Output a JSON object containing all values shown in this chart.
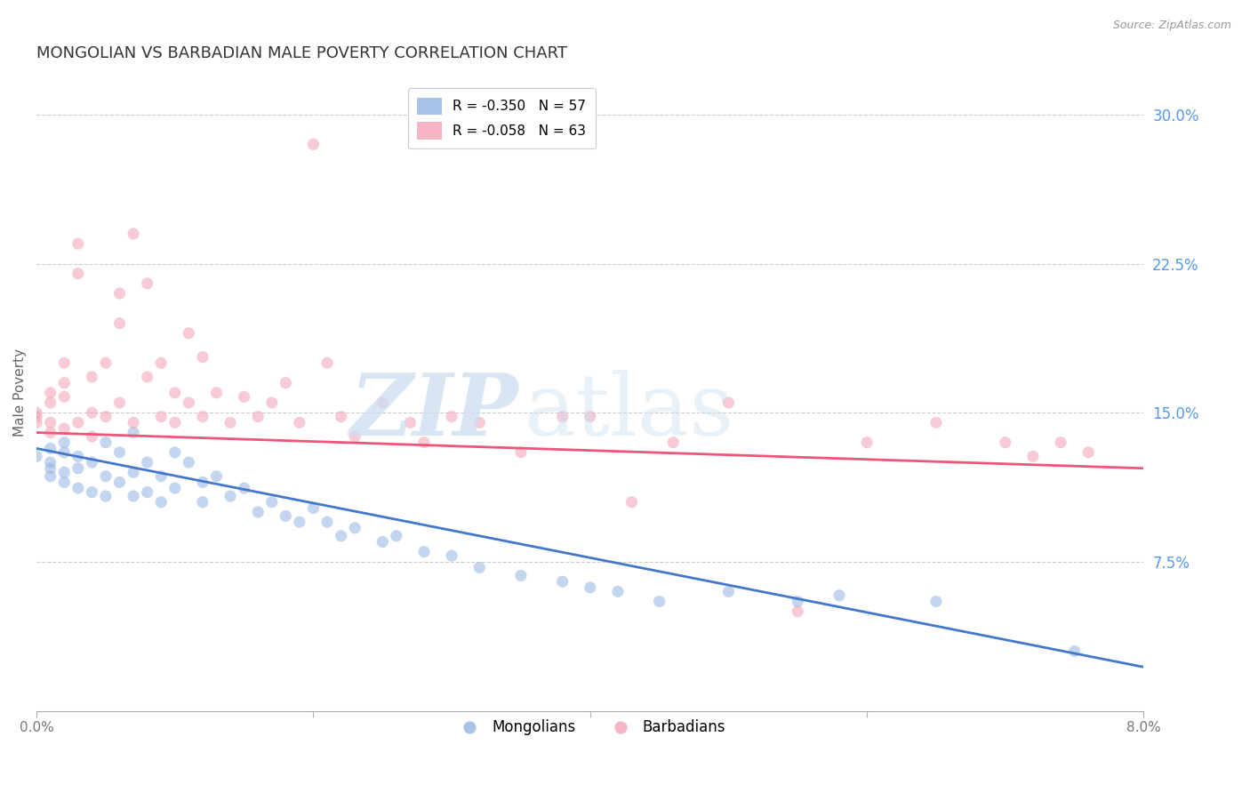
{
  "title": "MONGOLIAN VS BARBADIAN MALE POVERTY CORRELATION CHART",
  "source": "Source: ZipAtlas.com",
  "ylabel": "Male Poverty",
  "ytick_labels": [
    "30.0%",
    "22.5%",
    "15.0%",
    "7.5%"
  ],
  "ytick_values": [
    0.3,
    0.225,
    0.15,
    0.075
  ],
  "xlim": [
    0.0,
    0.08
  ],
  "ylim": [
    0.0,
    0.32
  ],
  "legend_entries": [
    {
      "label": "Mongolians",
      "color": "#92b4e3",
      "R": "-0.350",
      "N": "57"
    },
    {
      "label": "Barbadians",
      "color": "#f4a0b5",
      "R": "-0.058",
      "N": "63"
    }
  ],
  "mongolians_x": [
    0.0,
    0.001,
    0.001,
    0.001,
    0.001,
    0.002,
    0.002,
    0.002,
    0.002,
    0.003,
    0.003,
    0.003,
    0.004,
    0.004,
    0.005,
    0.005,
    0.005,
    0.006,
    0.006,
    0.007,
    0.007,
    0.007,
    0.008,
    0.008,
    0.009,
    0.009,
    0.01,
    0.01,
    0.011,
    0.012,
    0.012,
    0.013,
    0.014,
    0.015,
    0.016,
    0.017,
    0.018,
    0.019,
    0.02,
    0.021,
    0.022,
    0.023,
    0.025,
    0.026,
    0.028,
    0.03,
    0.032,
    0.035,
    0.038,
    0.04,
    0.042,
    0.045,
    0.05,
    0.055,
    0.058,
    0.065,
    0.075
  ],
  "mongolians_y": [
    0.128,
    0.132,
    0.118,
    0.122,
    0.125,
    0.13,
    0.115,
    0.12,
    0.135,
    0.128,
    0.122,
    0.112,
    0.125,
    0.11,
    0.135,
    0.118,
    0.108,
    0.13,
    0.115,
    0.14,
    0.12,
    0.108,
    0.125,
    0.11,
    0.118,
    0.105,
    0.13,
    0.112,
    0.125,
    0.115,
    0.105,
    0.118,
    0.108,
    0.112,
    0.1,
    0.105,
    0.098,
    0.095,
    0.102,
    0.095,
    0.088,
    0.092,
    0.085,
    0.088,
    0.08,
    0.078,
    0.072,
    0.068,
    0.065,
    0.062,
    0.06,
    0.055,
    0.06,
    0.055,
    0.058,
    0.055,
    0.03
  ],
  "barbadians_x": [
    0.0,
    0.0,
    0.0,
    0.001,
    0.001,
    0.001,
    0.001,
    0.002,
    0.002,
    0.002,
    0.002,
    0.003,
    0.003,
    0.003,
    0.004,
    0.004,
    0.004,
    0.005,
    0.005,
    0.006,
    0.006,
    0.006,
    0.007,
    0.007,
    0.008,
    0.008,
    0.009,
    0.009,
    0.01,
    0.01,
    0.011,
    0.011,
    0.012,
    0.012,
    0.013,
    0.014,
    0.015,
    0.016,
    0.017,
    0.018,
    0.019,
    0.02,
    0.021,
    0.022,
    0.023,
    0.025,
    0.027,
    0.028,
    0.03,
    0.032,
    0.035,
    0.038,
    0.04,
    0.043,
    0.046,
    0.05,
    0.055,
    0.06,
    0.065,
    0.07,
    0.072,
    0.074,
    0.076
  ],
  "barbadians_y": [
    0.145,
    0.15,
    0.148,
    0.155,
    0.14,
    0.16,
    0.145,
    0.175,
    0.158,
    0.142,
    0.165,
    0.22,
    0.235,
    0.145,
    0.15,
    0.168,
    0.138,
    0.175,
    0.148,
    0.21,
    0.195,
    0.155,
    0.24,
    0.145,
    0.215,
    0.168,
    0.175,
    0.148,
    0.16,
    0.145,
    0.19,
    0.155,
    0.178,
    0.148,
    0.16,
    0.145,
    0.158,
    0.148,
    0.155,
    0.165,
    0.145,
    0.285,
    0.175,
    0.148,
    0.138,
    0.155,
    0.145,
    0.135,
    0.148,
    0.145,
    0.13,
    0.148,
    0.148,
    0.105,
    0.135,
    0.155,
    0.05,
    0.135,
    0.145,
    0.135,
    0.128,
    0.135,
    0.13
  ],
  "mongol_color": "#92b4e3",
  "barb_color": "#f4a0b5",
  "mongol_line_color": "#4477cc",
  "barb_line_color": "#ee5577",
  "marker_size": 90,
  "marker_alpha": 0.55,
  "title_fontsize": 13,
  "axis_label_fontsize": 11,
  "tick_label_fontsize": 11,
  "source_fontsize": 9,
  "legend_fontsize": 11,
  "background_color": "#ffffff",
  "grid_color": "#cccccc",
  "right_tick_color": "#5599ee",
  "mongol_line_y0": 0.132,
  "mongol_line_y1": 0.022,
  "barb_line_y0": 0.14,
  "barb_line_y1": 0.122
}
